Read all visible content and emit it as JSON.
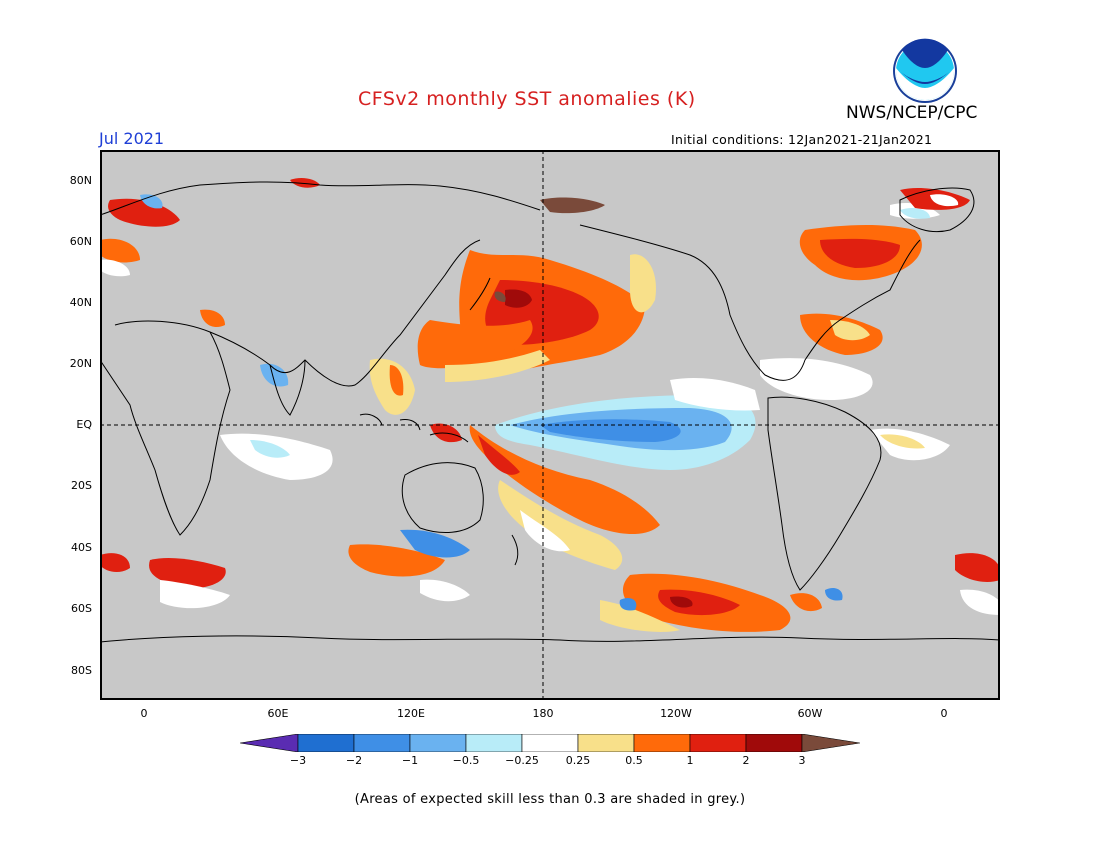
{
  "title": "CFSv2 monthly SST anomalies (K)",
  "agency": "NWS/NCEP/CPC",
  "month_label": "Jul 2021",
  "initial_conditions": "Initial conditions: 12Jan2021-21Jan2021",
  "footnote": "(Areas of expected skill less than 0.3 are shaded in grey.)",
  "logo_text": "NOAA",
  "lat_labels": [
    "80N",
    "60N",
    "40N",
    "20N",
    "EQ",
    "20S",
    "40S",
    "60S",
    "80S"
  ],
  "lon_labels": [
    "0",
    "60E",
    "120E",
    "180",
    "120W",
    "60W",
    "0"
  ],
  "colorbar": {
    "labels": [
      "-3",
      "-2",
      "-1",
      "-0.5",
      "-0.25",
      "0.25",
      "0.5",
      "1",
      "2",
      "3"
    ],
    "colors": [
      "#5a2cb2",
      "#1f6fd1",
      "#3f8fe6",
      "#6ab2f0",
      "#b8ecf8",
      "#ffffff",
      "#f8e08a",
      "#ff6a0a",
      "#e02010",
      "#a00a0a",
      "#7a4a3a"
    ]
  },
  "colors": {
    "land": "#c8c8c8",
    "skill_mask": "#c8c8c8",
    "title": "#d62020",
    "month": "#1f3fd6"
  }
}
